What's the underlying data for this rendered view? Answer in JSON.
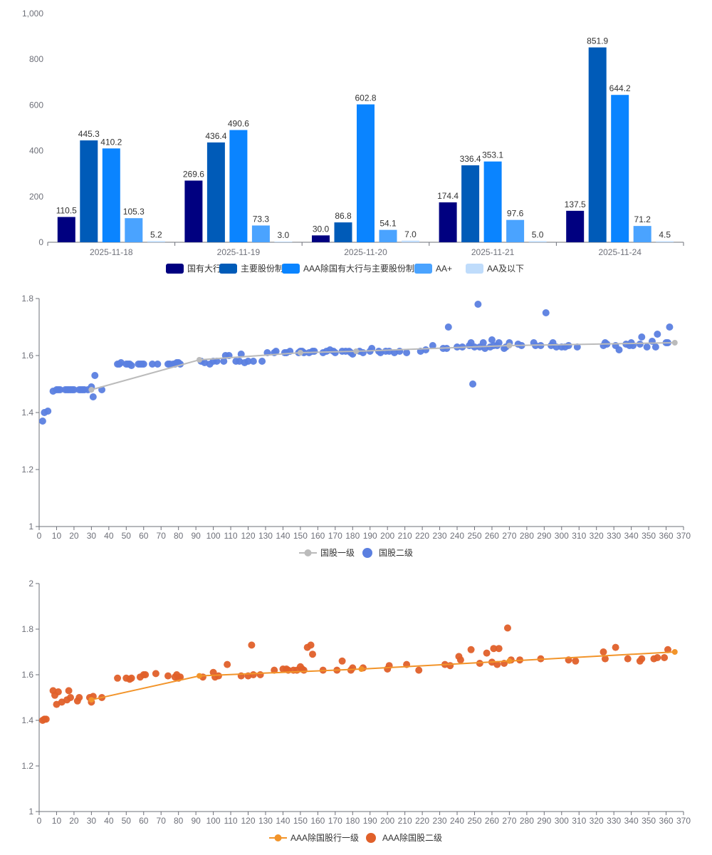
{
  "chart_data": [
    {
      "type": "bar",
      "categories": [
        "2025-11-18",
        "2025-11-19",
        "2025-11-20",
        "2025-11-21",
        "2025-11-24"
      ],
      "ylim": [
        0,
        1000
      ],
      "yticks": [
        "0",
        "200",
        "400",
        "600",
        "800",
        "1,000"
      ],
      "grid": false,
      "legend_position": "bottom",
      "series": [
        {
          "name": "国有大行",
          "color": "#000080",
          "values": [
            110.5,
            269.6,
            30.0,
            174.4,
            137.5
          ],
          "labels": [
            "110.5",
            "269.6",
            "30.0",
            "174.4",
            "137.5"
          ]
        },
        {
          "name": "主要股份制",
          "color": "#005bb8",
          "values": [
            445.3,
            436.4,
            86.8,
            336.4,
            851.9
          ],
          "labels": [
            "445.3",
            "436.4",
            "86.8",
            "336.4",
            "851.9"
          ]
        },
        {
          "name": "AAA除国有大行与主要股份制",
          "color": "#0a84ff",
          "values": [
            410.2,
            490.6,
            602.8,
            353.1,
            644.2
          ],
          "labels": [
            "410.2",
            "490.6",
            "602.8",
            "353.1",
            "644.2"
          ]
        },
        {
          "name": "AA+",
          "color": "#4aa3ff",
          "values": [
            105.3,
            73.3,
            54.1,
            97.6,
            71.2
          ],
          "labels": [
            "105.3",
            "73.3",
            "54.1",
            "97.6",
            "71.2"
          ]
        },
        {
          "name": "AA及以下",
          "color": "#bfdcfb",
          "values": [
            5.2,
            3.0,
            7.0,
            5.0,
            4.5
          ],
          "labels": [
            "5.2",
            "3.0",
            "7.0",
            "5.0",
            "4.5"
          ]
        }
      ]
    },
    {
      "type": "scatter",
      "xlim": [
        0,
        370
      ],
      "ylim": [
        1,
        1.8
      ],
      "xticks": [
        "0",
        "10",
        "20",
        "30",
        "40",
        "50",
        "60",
        "70",
        "80",
        "90",
        "100",
        "110",
        "120",
        "130",
        "140",
        "150",
        "160",
        "170",
        "180",
        "190",
        "200",
        "210",
        "220",
        "230",
        "240",
        "250",
        "260",
        "270",
        "280",
        "290",
        "300",
        "310",
        "320",
        "330",
        "340",
        "350",
        "360",
        "370"
      ],
      "yticks": [
        "1",
        "1.2",
        "1.4",
        "1.6",
        "1.8"
      ],
      "grid": false,
      "legend_position": "bottom",
      "series": [
        {
          "name": "国股一级",
          "kind": "line",
          "color": "#bbbbbb",
          "x": [
            30,
            92,
            150,
            182,
            270,
            365
          ],
          "y": [
            1.48,
            1.585,
            1.61,
            1.615,
            1.635,
            1.645
          ]
        },
        {
          "name": "国股二级",
          "kind": "scatter",
          "color": "#5b7fe0",
          "x": [
            2,
            3,
            5,
            8,
            10,
            11,
            12,
            15,
            16,
            17,
            18,
            19,
            20,
            23,
            24,
            25,
            26,
            28,
            30,
            31,
            32,
            36,
            45,
            46,
            47,
            50,
            51,
            52,
            53,
            57,
            58,
            59,
            60,
            65,
            68,
            74,
            75,
            77,
            78,
            79,
            80,
            81,
            93,
            95,
            98,
            100,
            102,
            106,
            107,
            109,
            113,
            115,
            116,
            118,
            120,
            123,
            128,
            131,
            135,
            136,
            141,
            142,
            144,
            149,
            150,
            151,
            152,
            155,
            157,
            158,
            163,
            165,
            167,
            169,
            170,
            174,
            176,
            178,
            179,
            180,
            184,
            186,
            190,
            191,
            195,
            196,
            199,
            201,
            204,
            207,
            211,
            219,
            222,
            226,
            232,
            234,
            235,
            240,
            243,
            247,
            248,
            249,
            250,
            252,
            253,
            255,
            256,
            259,
            260,
            261,
            263,
            264,
            267,
            268,
            270,
            275,
            277,
            284,
            285,
            288,
            291,
            294,
            295,
            297,
            300,
            302,
            304,
            309,
            324,
            325,
            326,
            331,
            333,
            337,
            339,
            340,
            341,
            345,
            346,
            349,
            352,
            354,
            355,
            360,
            361,
            362
          ],
          "y": [
            1.37,
            1.4,
            1.405,
            1.475,
            1.48,
            1.48,
            1.48,
            1.48,
            1.48,
            1.48,
            1.48,
            1.48,
            1.48,
            1.48,
            1.48,
            1.48,
            1.48,
            1.48,
            1.49,
            1.455,
            1.53,
            1.48,
            1.57,
            1.57,
            1.575,
            1.57,
            1.57,
            1.57,
            1.565,
            1.57,
            1.57,
            1.57,
            1.57,
            1.57,
            1.57,
            1.57,
            1.57,
            1.57,
            1.57,
            1.575,
            1.575,
            1.57,
            1.58,
            1.575,
            1.57,
            1.58,
            1.58,
            1.58,
            1.6,
            1.6,
            1.58,
            1.58,
            1.605,
            1.575,
            1.58,
            1.58,
            1.58,
            1.61,
            1.61,
            1.615,
            1.61,
            1.61,
            1.615,
            1.61,
            1.615,
            1.615,
            1.61,
            1.61,
            1.615,
            1.615,
            1.61,
            1.615,
            1.62,
            1.615,
            1.61,
            1.615,
            1.615,
            1.615,
            1.61,
            1.605,
            1.615,
            1.61,
            1.615,
            1.625,
            1.615,
            1.61,
            1.615,
            1.615,
            1.61,
            1.615,
            1.61,
            1.615,
            1.62,
            1.635,
            1.625,
            1.625,
            1.7,
            1.63,
            1.63,
            1.635,
            1.645,
            1.5,
            1.63,
            1.78,
            1.63,
            1.645,
            1.625,
            1.63,
            1.655,
            1.635,
            1.635,
            1.645,
            1.625,
            1.63,
            1.645,
            1.64,
            1.635,
            1.645,
            1.635,
            1.635,
            1.75,
            1.635,
            1.645,
            1.63,
            1.63,
            1.63,
            1.635,
            1.63,
            1.635,
            1.645,
            1.64,
            1.635,
            1.62,
            1.64,
            1.635,
            1.645,
            1.635,
            1.64,
            1.665,
            1.63,
            1.65,
            1.63,
            1.675,
            1.645,
            1.645,
            1.7
          ]
        }
      ]
    },
    {
      "type": "scatter",
      "xlim": [
        0,
        370
      ],
      "ylim": [
        1,
        2
      ],
      "xticks": [
        "0",
        "10",
        "20",
        "30",
        "40",
        "50",
        "60",
        "70",
        "80",
        "90",
        "100",
        "110",
        "120",
        "130",
        "140",
        "150",
        "160",
        "170",
        "180",
        "190",
        "200",
        "210",
        "220",
        "230",
        "240",
        "250",
        "260",
        "270",
        "280",
        "290",
        "300",
        "310",
        "320",
        "330",
        "340",
        "350",
        "360",
        "370"
      ],
      "yticks": [
        "1",
        "1.2",
        "1.4",
        "1.6",
        "1.8",
        "2"
      ],
      "grid": false,
      "legend_position": "bottom",
      "series": [
        {
          "name": "AAA除国股行一级",
          "kind": "line",
          "color": "#f2942a",
          "x": [
            30,
            92,
            185,
            270,
            365
          ],
          "y": [
            1.49,
            1.595,
            1.625,
            1.66,
            1.7
          ]
        },
        {
          "name": "AAA除国股二级",
          "kind": "scatter",
          "color": "#e0602a",
          "x": [
            2,
            3,
            4,
            8,
            9,
            10,
            11,
            13,
            16,
            17,
            18,
            22,
            23,
            29,
            30,
            31,
            36,
            45,
            50,
            52,
            53,
            58,
            60,
            61,
            67,
            74,
            78,
            79,
            80,
            81,
            94,
            100,
            101,
            103,
            108,
            116,
            120,
            122,
            123,
            127,
            135,
            140,
            142,
            143,
            146,
            148,
            150,
            151,
            152,
            154,
            156,
            157,
            163,
            171,
            174,
            179,
            180,
            186,
            200,
            201,
            211,
            218,
            233,
            236,
            241,
            242,
            248,
            253,
            257,
            260,
            261,
            263,
            264,
            267,
            269,
            271,
            276,
            288,
            304,
            308,
            324,
            325,
            331,
            338,
            345,
            346,
            353,
            355,
            359,
            361
          ],
          "y": [
            1.4,
            1.405,
            1.405,
            1.53,
            1.51,
            1.47,
            1.525,
            1.48,
            1.49,
            1.53,
            1.5,
            1.485,
            1.5,
            1.5,
            1.48,
            1.505,
            1.5,
            1.585,
            1.585,
            1.58,
            1.585,
            1.59,
            1.6,
            1.6,
            1.605,
            1.595,
            1.59,
            1.6,
            1.585,
            1.59,
            1.59,
            1.61,
            1.59,
            1.595,
            1.645,
            1.595,
            1.595,
            1.73,
            1.6,
            1.6,
            1.62,
            1.625,
            1.625,
            1.62,
            1.62,
            1.62,
            1.635,
            1.625,
            1.62,
            1.72,
            1.73,
            1.69,
            1.62,
            1.62,
            1.66,
            1.62,
            1.63,
            1.63,
            1.625,
            1.64,
            1.645,
            1.62,
            1.645,
            1.64,
            1.68,
            1.665,
            1.71,
            1.65,
            1.695,
            1.655,
            1.715,
            1.645,
            1.715,
            1.65,
            1.805,
            1.665,
            1.665,
            1.67,
            1.665,
            1.66,
            1.7,
            1.67,
            1.72,
            1.67,
            1.66,
            1.67,
            1.67,
            1.675,
            1.675,
            1.71
          ]
        }
      ]
    }
  ]
}
